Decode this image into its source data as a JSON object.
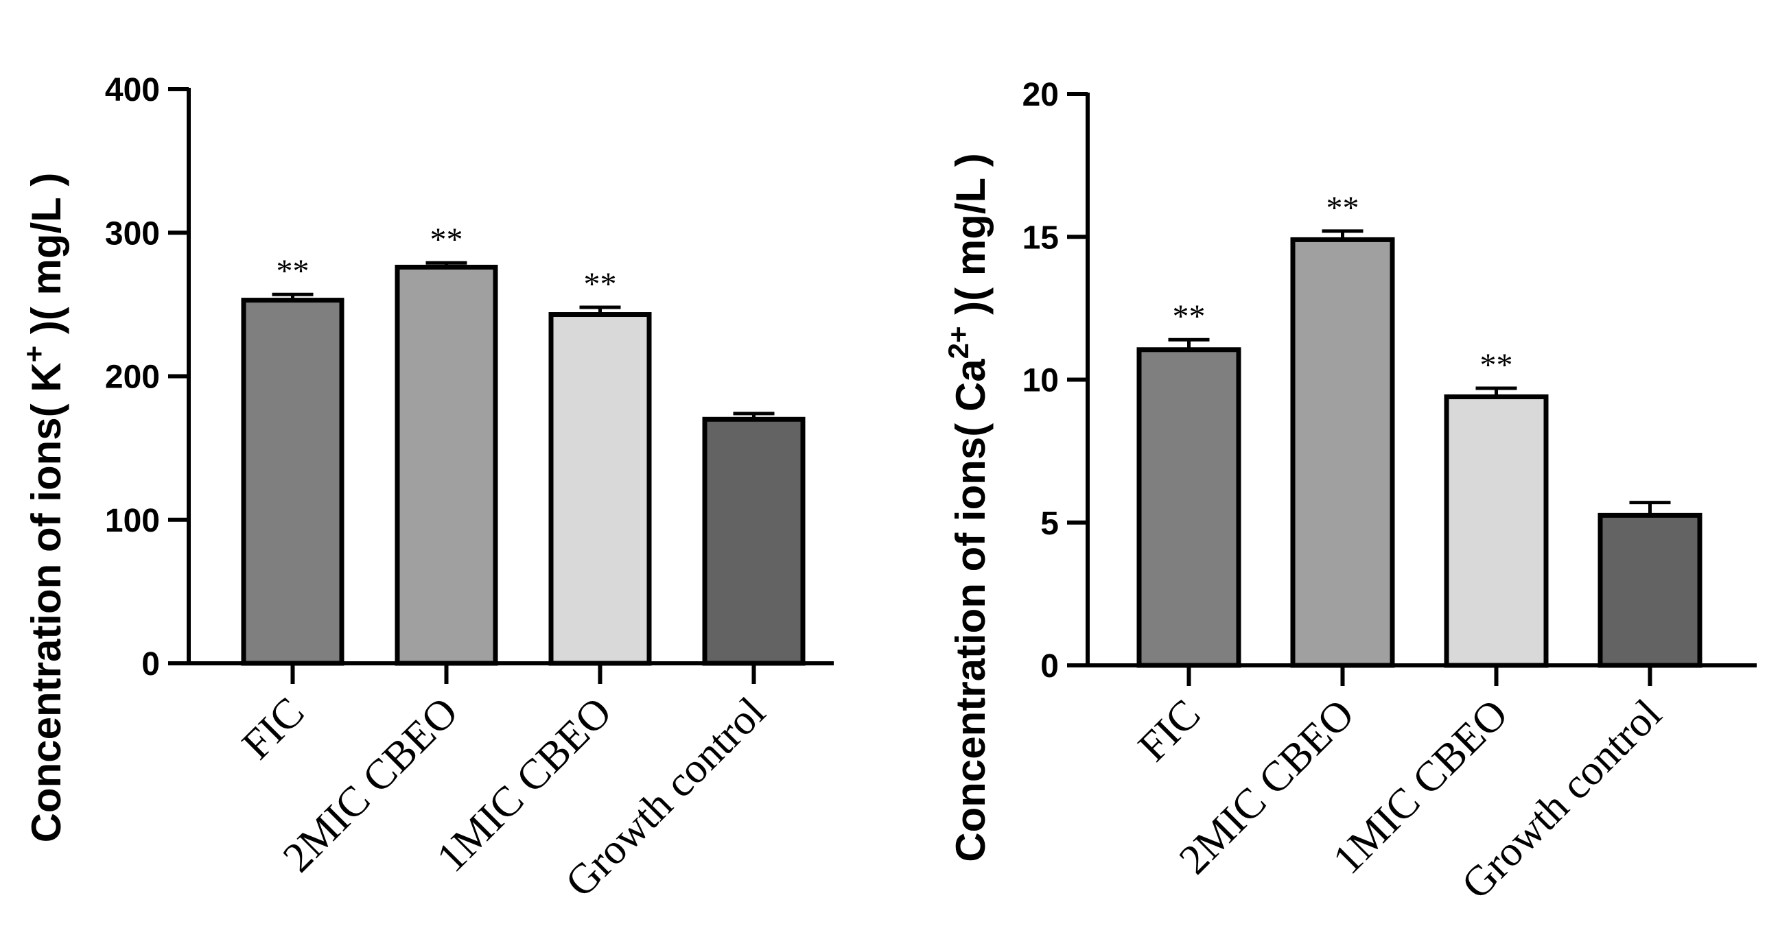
{
  "chart_data": [
    {
      "type": "bar",
      "title": "",
      "xlabel": "",
      "ylabel": "Concentration of ions( K",
      "ylabel_superscript": "+",
      "ylabel_suffix": " )( mg/L )",
      "categories": [
        "FIC",
        "2MIC CBEO",
        "1MIC CBEO",
        "Growth control"
      ],
      "values": [
        253,
        276,
        243,
        170
      ],
      "errors": [
        4,
        3,
        5,
        4
      ],
      "bar_colors": [
        "#7f7f7f",
        "#a0a0a0",
        "#d9d9d9",
        "#636363"
      ],
      "significance": [
        "**",
        "**",
        "**",
        ""
      ],
      "ylim": [
        0,
        400
      ],
      "yticks": [
        0,
        100,
        200,
        300,
        400
      ],
      "grid": false
    },
    {
      "type": "bar",
      "title": "",
      "xlabel": "",
      "ylabel": "Concentration of ions( Ca",
      "ylabel_superscript": "2+",
      "ylabel_suffix": " )( mg/L )",
      "categories": [
        "FIC",
        "2MIC CBEO",
        "1MIC CBEO",
        "Growth control"
      ],
      "values": [
        11.05,
        14.9,
        9.4,
        5.25
      ],
      "errors": [
        0.35,
        0.3,
        0.3,
        0.45
      ],
      "bar_colors": [
        "#7f7f7f",
        "#a0a0a0",
        "#d9d9d9",
        "#636363"
      ],
      "significance": [
        "**",
        "**",
        "**",
        ""
      ],
      "ylim": [
        0,
        20
      ],
      "yticks": [
        0,
        5,
        10,
        15,
        20
      ],
      "grid": false
    }
  ]
}
